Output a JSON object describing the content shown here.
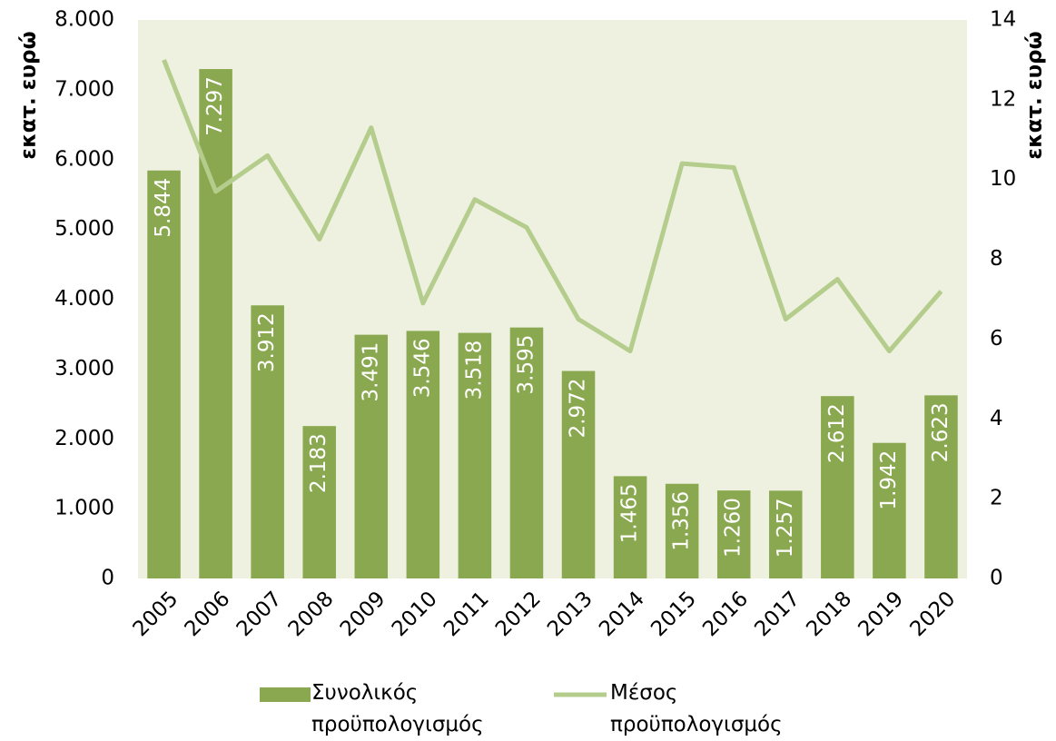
{
  "chart_data": {
    "type": "bar",
    "y_label": "εκατ. ευρώ",
    "y2_label": "εκατ. ευρώ",
    "categories": [
      "2005",
      "2006",
      "2007",
      "2008",
      "2009",
      "2010",
      "2011",
      "2012",
      "2013",
      "2014",
      "2015",
      "2016",
      "2017",
      "2018",
      "2019",
      "2020"
    ],
    "series": [
      {
        "name": "Συνολικός προϋπολογισμός",
        "type": "bar",
        "color": "#8aa84f",
        "values": [
          5844,
          7297,
          3912,
          2183,
          3491,
          3546,
          3518,
          3595,
          2972,
          1465,
          1356,
          1260,
          1257,
          2612,
          1942,
          2623
        ],
        "value_labels": [
          "5.844",
          "7.297",
          "3.912",
          "2.183",
          "3.491",
          "3.546",
          "3.518",
          "3.595",
          "2.972",
          "1.465",
          "1.356",
          "1.260",
          "1.257",
          "2.612",
          "1.942",
          "2.623"
        ]
      },
      {
        "name": "Μέσος προϋπολογισμός",
        "type": "line",
        "axis": "y2",
        "color": "#b5cd8c",
        "values": [
          13.0,
          9.7,
          10.6,
          8.5,
          11.3,
          6.9,
          9.5,
          8.8,
          6.5,
          5.7,
          10.4,
          10.3,
          6.5,
          7.5,
          5.7,
          7.2
        ]
      }
    ],
    "ylim": [
      0,
      8000
    ],
    "yticks": [
      0,
      {
        "value": 1000,
        "label": "1.000"
      },
      {
        "value": 2000,
        "label": "2.000"
      },
      {
        "value": 3000,
        "label": "3.000"
      },
      {
        "value": 4000,
        "label": "4.000"
      },
      {
        "value": 5000,
        "label": "5.000"
      },
      {
        "value": 6000,
        "label": "6.000"
      },
      {
        "value": 7000,
        "label": "7.000"
      },
      {
        "value": 8000,
        "label": "8.000"
      }
    ],
    "y2lim": [
      0,
      14
    ],
    "y2ticks": [
      0,
      2,
      4,
      6,
      8,
      10,
      12,
      14
    ],
    "plot_background": "#eef1e0"
  }
}
